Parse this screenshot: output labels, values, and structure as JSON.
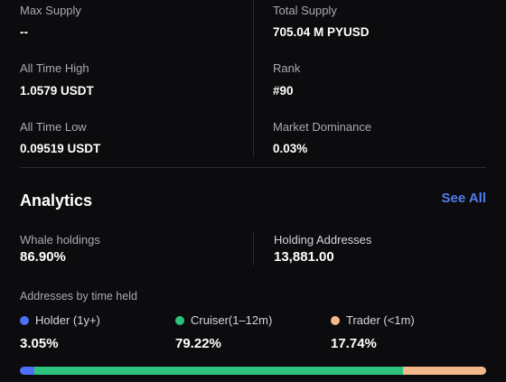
{
  "stats": {
    "max_supply": {
      "label": "Max Supply",
      "value": "--"
    },
    "total_supply": {
      "label": "Total Supply",
      "value": "705.04 M PYUSD"
    },
    "ath": {
      "label": "All Time High",
      "value": "1.0579 USDT"
    },
    "rank": {
      "label": "Rank",
      "value": "#90"
    },
    "atl": {
      "label": "All Time Low",
      "value": "0.09519 USDT"
    },
    "dominance": {
      "label": "Market Dominance",
      "value": "0.03%"
    }
  },
  "analytics": {
    "title": "Analytics",
    "see_all": "See All",
    "whale": {
      "label": "Whale holdings",
      "value": "86.90%"
    },
    "holders": {
      "label": "Holding Addresses",
      "value": "13,881.00"
    },
    "time_held": {
      "title": "Addresses by time held",
      "categories": [
        {
          "label": "Holder (1y+)",
          "value": "3.05%",
          "fraction": 0.0305,
          "color": "#4f6ef7"
        },
        {
          "label": "Cruiser(1–12m)",
          "value": "79.22%",
          "fraction": 0.7922,
          "color": "#2ec27e"
        },
        {
          "label": "Trader (<1m)",
          "value": "17.74%",
          "fraction": 0.1774,
          "color": "#f3b98a"
        }
      ]
    }
  }
}
